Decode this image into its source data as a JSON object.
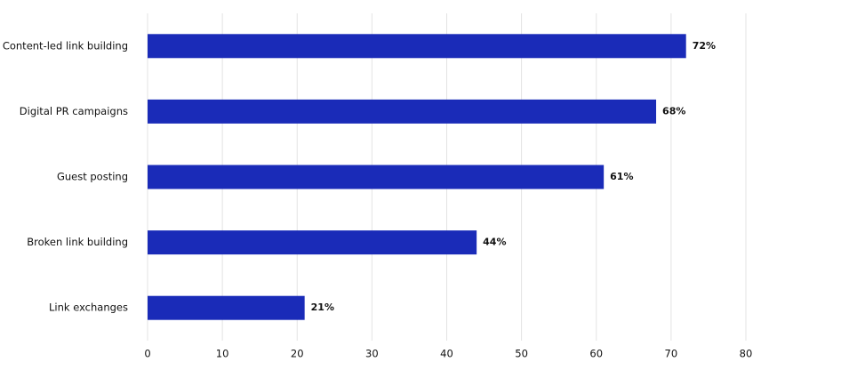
{
  "chart_data": {
    "type": "bar",
    "orientation": "horizontal",
    "categories": [
      "Content-led link building",
      "Digital PR campaigns",
      "Guest posting",
      "Broken link building",
      "Link exchanges"
    ],
    "values": [
      72,
      68,
      61,
      44,
      21
    ],
    "value_labels": [
      "72%",
      "68%",
      "61%",
      "44%",
      "21%"
    ],
    "color": "#1a2bb8",
    "xlim": [
      0,
      80
    ],
    "xticks": [
      0,
      10,
      20,
      30,
      40,
      50,
      60,
      70,
      80
    ],
    "grid": true
  }
}
